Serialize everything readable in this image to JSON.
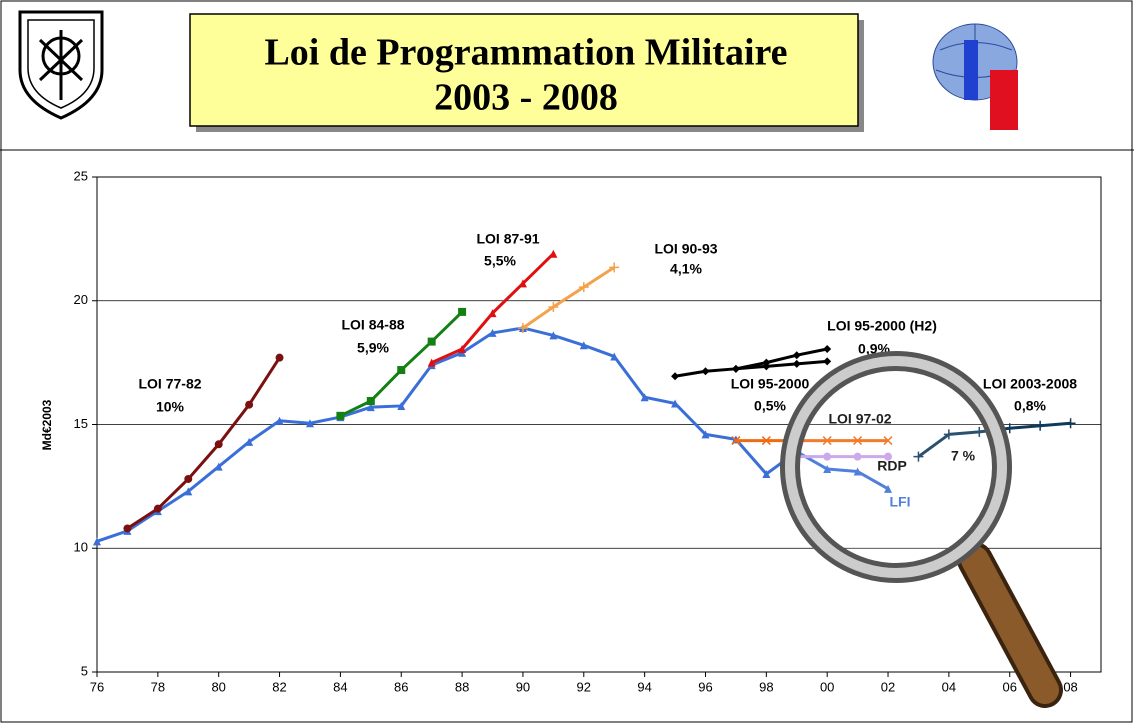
{
  "chart_data": {
    "type": "line",
    "title": "Loi de Programmation Militaire",
    "subtitle": "2003 - 2008",
    "y_label": "Md€2003",
    "x": [
      1976,
      1977,
      1978,
      1979,
      1980,
      1981,
      1982,
      1983,
      1984,
      1985,
      1986,
      1987,
      1988,
      1989,
      1990,
      1991,
      1992,
      1993,
      1994,
      1995,
      1996,
      1997,
      1998,
      1999,
      2000,
      2001,
      2002,
      2003,
      2004,
      2005,
      2006,
      2007,
      2008
    ],
    "xlim": [
      1976,
      2009
    ],
    "xticks": [
      {
        "value": 1976,
        "label": "76"
      },
      {
        "value": 1978,
        "label": "78"
      },
      {
        "value": 1980,
        "label": "80"
      },
      {
        "value": 1982,
        "label": "82"
      },
      {
        "value": 1984,
        "label": "84"
      },
      {
        "value": 1986,
        "label": "86"
      },
      {
        "value": 1988,
        "label": "88"
      },
      {
        "value": 1990,
        "label": "90"
      },
      {
        "value": 1992,
        "label": "92"
      },
      {
        "value": 1994,
        "label": "94"
      },
      {
        "value": 1996,
        "label": "96"
      },
      {
        "value": 1998,
        "label": "98"
      },
      {
        "value": 2000,
        "label": "00"
      },
      {
        "value": 2002,
        "label": "02"
      },
      {
        "value": 2004,
        "label": "04"
      },
      {
        "value": 2006,
        "label": "06"
      },
      {
        "value": 2008,
        "label": "08"
      }
    ],
    "ylim": [
      5,
      25
    ],
    "yticks": [
      5,
      10,
      15,
      20,
      25
    ],
    "grid": true,
    "series": [
      {
        "name": "LFI",
        "color": "#3a6fd8",
        "marker": "triangle",
        "values": [
          10.28,
          10.7,
          11.5,
          12.3,
          13.3,
          14.3,
          15.15,
          15.05,
          15.3,
          15.7,
          15.75,
          17.4,
          17.9,
          18.7,
          18.9,
          18.6,
          18.2,
          17.75,
          16.1,
          15.85,
          14.6,
          14.4,
          13.0,
          13.9,
          13.2,
          13.1,
          12.4,
          null,
          null,
          null,
          null,
          null,
          null
        ]
      },
      {
        "name": "LOI 77-82",
        "color": "#7b1010",
        "marker": "circle",
        "values": [
          null,
          10.8,
          11.6,
          12.8,
          14.2,
          15.8,
          17.7,
          null,
          null,
          null,
          null,
          null,
          null,
          null,
          null,
          null,
          null,
          null,
          null,
          null,
          null,
          null,
          null,
          null,
          null,
          null,
          null,
          null,
          null,
          null,
          null,
          null,
          null
        ]
      },
      {
        "name": "LOI 84-88",
        "color": "#138013",
        "marker": "square",
        "values": [
          null,
          null,
          null,
          null,
          null,
          null,
          null,
          null,
          15.35,
          15.95,
          17.2,
          18.35,
          19.55,
          null,
          null,
          null,
          null,
          null,
          null,
          null,
          null,
          null,
          null,
          null,
          null,
          null,
          null,
          null,
          null,
          null,
          null,
          null,
          null
        ]
      },
      {
        "name": "LOI 87-91",
        "color": "#e01010",
        "marker": "triangle",
        "values": [
          null,
          null,
          null,
          null,
          null,
          null,
          null,
          null,
          null,
          null,
          null,
          17.5,
          18.05,
          19.5,
          20.7,
          21.9,
          null,
          null,
          null,
          null,
          null,
          null,
          null,
          null,
          null,
          null,
          null,
          null,
          null,
          null,
          null,
          null,
          null
        ]
      },
      {
        "name": "LOI 90-93",
        "color": "#f4a24a",
        "marker": "plus",
        "values": [
          null,
          null,
          null,
          null,
          null,
          null,
          null,
          null,
          null,
          null,
          null,
          null,
          null,
          null,
          18.9,
          19.75,
          20.55,
          21.35,
          null,
          null,
          null,
          null,
          null,
          null,
          null,
          null,
          null,
          null,
          null,
          null,
          null,
          null,
          null
        ]
      },
      {
        "name": "LOI 95-2000 (H2)",
        "color": "#000000",
        "marker": "diamond",
        "values": [
          null,
          null,
          null,
          null,
          null,
          null,
          null,
          null,
          null,
          null,
          null,
          null,
          null,
          null,
          null,
          null,
          null,
          null,
          null,
          16.95,
          17.15,
          17.25,
          17.5,
          17.8,
          18.05,
          null,
          null,
          null,
          null,
          null,
          null,
          null,
          null
        ]
      },
      {
        "name": "LOI 95-2000",
        "color": "#000000",
        "marker": "diamond",
        "values": [
          null,
          null,
          null,
          null,
          null,
          null,
          null,
          null,
          null,
          null,
          null,
          null,
          null,
          null,
          null,
          null,
          null,
          null,
          null,
          null,
          null,
          17.25,
          17.35,
          17.45,
          17.55,
          null,
          null,
          null,
          null,
          null,
          null,
          null,
          null
        ]
      },
      {
        "name": "LOI 97-02",
        "color": "#f06a10",
        "marker": "x",
        "values": [
          null,
          null,
          null,
          null,
          null,
          null,
          null,
          null,
          null,
          null,
          null,
          null,
          null,
          null,
          null,
          null,
          null,
          null,
          null,
          null,
          null,
          14.35,
          14.35,
          14.35,
          14.35,
          14.35,
          14.35,
          null,
          null,
          null,
          null,
          null,
          null
        ]
      },
      {
        "name": "RDP",
        "color": "#c49ee8",
        "marker": "circle",
        "values": [
          null,
          null,
          null,
          null,
          null,
          null,
          null,
          null,
          null,
          null,
          null,
          null,
          null,
          null,
          null,
          null,
          null,
          null,
          null,
          null,
          null,
          null,
          null,
          13.7,
          13.7,
          13.7,
          13.7,
          null,
          null,
          null,
          null,
          null,
          null
        ]
      },
      {
        "name": "LOI 2003-2008",
        "color": "#0e3a5c",
        "marker": "plus",
        "values": [
          null,
          null,
          null,
          null,
          null,
          null,
          null,
          null,
          null,
          null,
          null,
          null,
          null,
          null,
          null,
          null,
          null,
          null,
          null,
          null,
          null,
          null,
          null,
          null,
          null,
          null,
          null,
          13.7,
          14.6,
          14.7,
          14.85,
          14.95,
          15.05
        ]
      }
    ],
    "annotations": [
      "10%",
      "5,9%",
      "5,5%",
      "4,1%",
      "0,9%",
      "0,5%",
      "0,8%",
      "7 %"
    ]
  }
}
